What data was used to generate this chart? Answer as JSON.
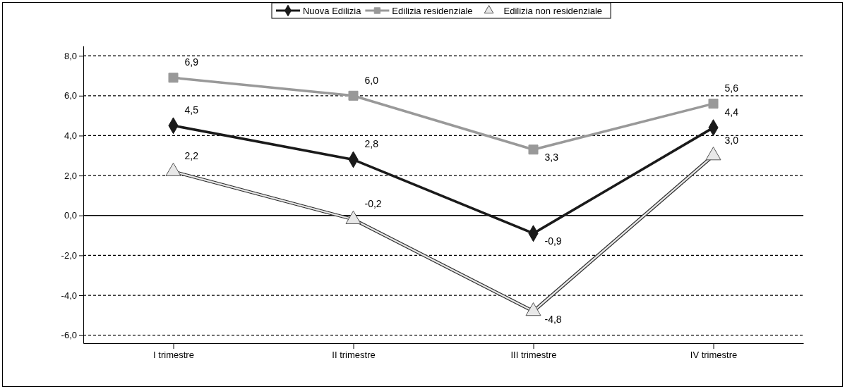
{
  "chart_data": {
    "type": "line",
    "categories": [
      "I trimestre",
      "II trimestre",
      "III trimestre",
      "IV trimestre"
    ],
    "series": [
      {
        "name": "Nuova Edilizia",
        "color": "#1a1a1a",
        "marker": "diamond",
        "values": [
          4.5,
          2.8,
          -0.9,
          4.4
        ],
        "value_labels": [
          "4,5",
          "2,8",
          "-0,9",
          "4,4"
        ]
      },
      {
        "name": "Edilizia residenziale",
        "color": "#999999",
        "marker": "square",
        "values": [
          6.9,
          6.0,
          3.3,
          5.6
        ],
        "value_labels": [
          "6,9",
          "6,0",
          "3,3",
          "5,6"
        ]
      },
      {
        "name": "Edilizia non residenziale",
        "color": "#e8e8e8",
        "marker": "triangle",
        "values": [
          2.2,
          -0.2,
          -4.8,
          3.0
        ],
        "value_labels": [
          "2,2",
          "-0,2",
          "-4,8",
          "3,0"
        ]
      }
    ],
    "ylim": [
      -6.4,
      8.5
    ],
    "yticks": [
      {
        "value": -6,
        "label": "-6,0"
      },
      {
        "value": -4,
        "label": "-4,0"
      },
      {
        "value": -2,
        "label": "-2,0"
      },
      {
        "value": 0,
        "label": "0,0"
      },
      {
        "value": 2,
        "label": "2,0"
      },
      {
        "value": 4,
        "label": "4,0"
      },
      {
        "value": 6,
        "label": "6,0"
      },
      {
        "value": 8,
        "label": "8,0"
      }
    ],
    "grid": "y",
    "legend": "top"
  }
}
